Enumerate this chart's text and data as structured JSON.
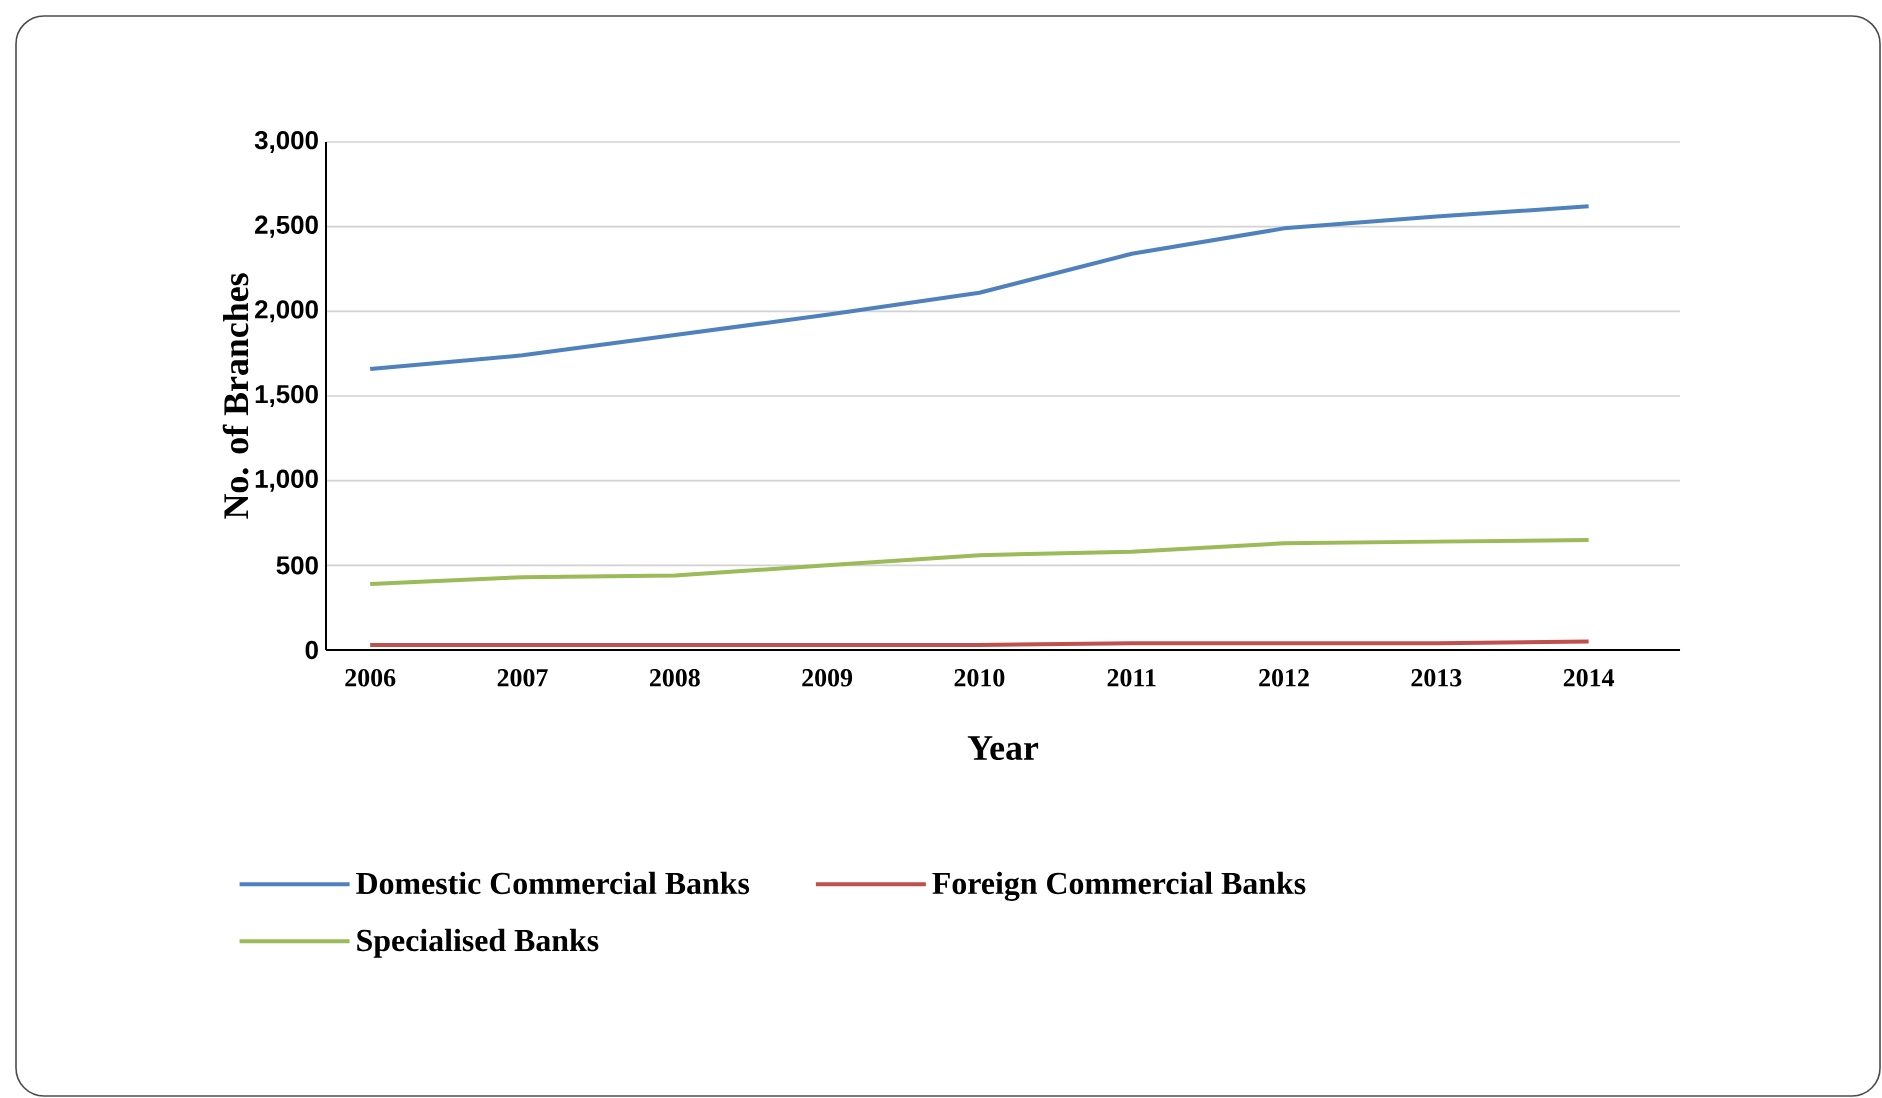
{
  "chart_data": {
    "type": "line",
    "xlabel": "Year",
    "ylabel": "No. of Branches",
    "categories": [
      "2006",
      "2007",
      "2008",
      "2009",
      "2010",
      "2011",
      "2012",
      "2013",
      "2014"
    ],
    "series": [
      {
        "name": "Domestic Commercial Banks",
        "color": "#4f81bd",
        "values": [
          1660,
          1740,
          1860,
          1980,
          2110,
          2340,
          2490,
          2560,
          2620
        ]
      },
      {
        "name": "Foreign Commercial Banks",
        "color": "#c0504d",
        "values": [
          30,
          30,
          30,
          30,
          30,
          40,
          40,
          40,
          50
        ]
      },
      {
        "name": "Specialised Banks",
        "color": "#9bbb59",
        "values": [
          390,
          430,
          440,
          500,
          560,
          580,
          630,
          640,
          650
        ]
      }
    ],
    "ylim": [
      0,
      3000
    ],
    "yticks": [
      0,
      500,
      {
        "value": 1000,
        "label": "1,000"
      },
      {
        "value": 1500,
        "label": "1,500"
      },
      {
        "value": 2000,
        "label": "2,000"
      },
      {
        "value": 2500,
        "label": "2,500"
      },
      {
        "value": 3000,
        "label": "3,000"
      }
    ],
    "grid": "y",
    "legend": "bottom",
    "marker": "none",
    "line_style": "solid"
  }
}
